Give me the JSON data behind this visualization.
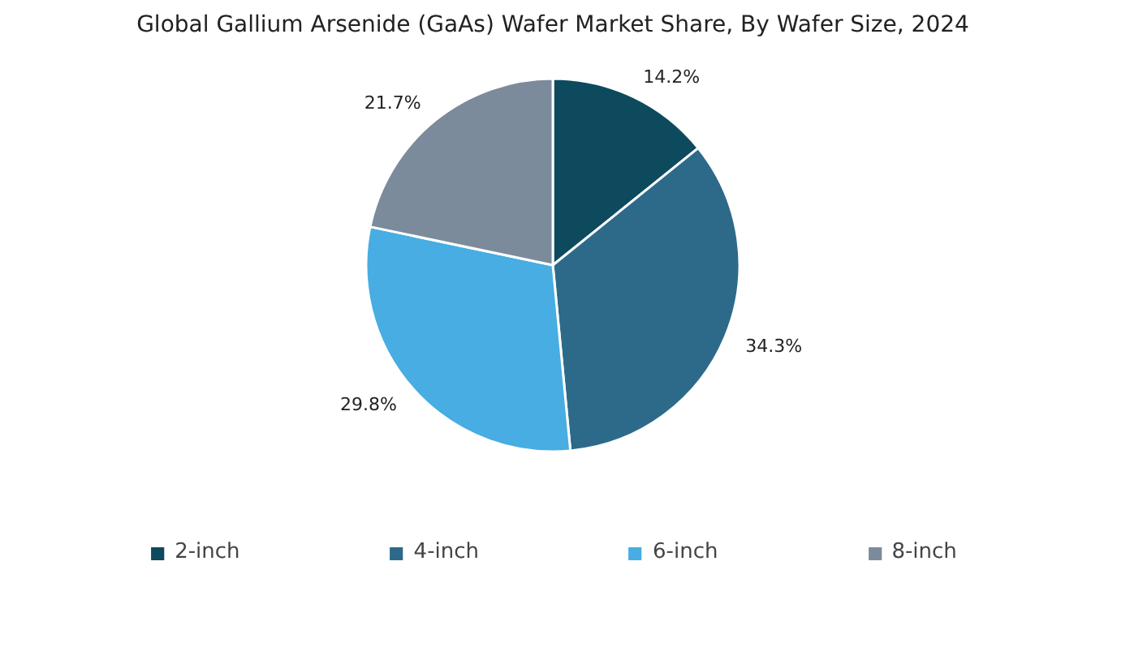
{
  "chart_data": {
    "type": "pie",
    "title": "Global Gallium Arsenide (GaAs) Wafer Market Share, By Wafer Size, 2024",
    "categories": [
      "2-inch",
      "4-inch",
      "6-inch",
      "8-inch"
    ],
    "values": [
      14.2,
      34.3,
      29.8,
      21.7
    ],
    "value_labels": [
      "14.2%",
      "34.3%",
      "29.8%",
      "21.7%"
    ],
    "colors": [
      "#0d4a5e",
      "#2d6a8a",
      "#47ade2",
      "#7b8b9b"
    ],
    "legend": "bottom"
  }
}
